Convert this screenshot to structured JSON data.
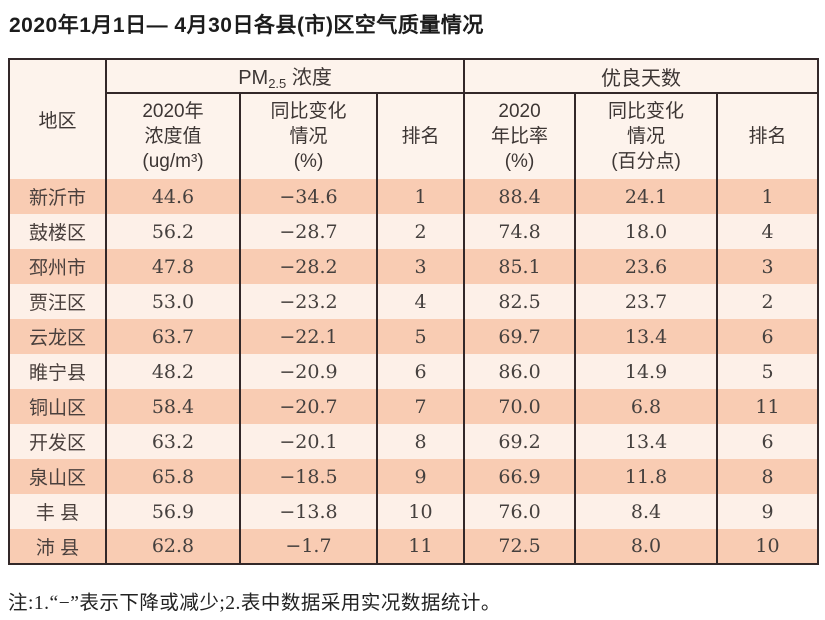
{
  "page": {
    "title": "2020年1月1日— 4月30日各县(市)区空气质量情况",
    "note": "注:1.“−”表示下降或减少;2.表中数据采用实况数据统计。"
  },
  "colors": {
    "row_odd_bg": "#f9ccb3",
    "row_even_bg": "#fdf0e8",
    "header_bg": "#fdf3ec",
    "border": "#332829",
    "page_bg": "#ffffff"
  },
  "table": {
    "header": {
      "region": "地区",
      "pm_group": {
        "prefix": "PM",
        "sub": "2.5",
        "tail": " 浓度"
      },
      "good_group": "优良天数",
      "sub_headers": [
        "2020年\n浓度值\n(ug/m³)",
        "同比变化\n情况\n(%)",
        "排名",
        "2020\n年比率\n(%)",
        "同比变化\n情况\n(百分点)",
        "排名"
      ]
    },
    "cell_names": [
      "cell-region",
      "cell-pm-value",
      "cell-pm-change",
      "cell-pm-rank",
      "cell-good-rate",
      "cell-good-change",
      "cell-good-rank"
    ],
    "rows": [
      [
        "新沂市",
        "44.6",
        "−34.6",
        "1",
        "88.4",
        "24.1",
        "1"
      ],
      [
        "鼓楼区",
        "56.2",
        "−28.7",
        "2",
        "74.8",
        "18.0",
        "4"
      ],
      [
        "邳州市",
        "47.8",
        "−28.2",
        "3",
        "85.1",
        "23.6",
        "3"
      ],
      [
        "贾汪区",
        "53.0",
        "−23.2",
        "4",
        "82.5",
        "23.7",
        "2"
      ],
      [
        "云龙区",
        "63.7",
        "−22.1",
        "5",
        "69.7",
        "13.4",
        "6"
      ],
      [
        "睢宁县",
        "48.2",
        "−20.9",
        "6",
        "86.0",
        "14.9",
        "5"
      ],
      [
        "铜山区",
        "58.4",
        "−20.7",
        "7",
        "70.0",
        "6.8",
        "11"
      ],
      [
        "开发区",
        "63.2",
        "−20.1",
        "8",
        "69.2",
        "13.4",
        "6"
      ],
      [
        "泉山区",
        "65.8",
        "−18.5",
        "9",
        "66.9",
        "11.8",
        "8"
      ],
      [
        "丰 县",
        "56.9",
        "−13.8",
        "10",
        "76.0",
        "8.4",
        "9"
      ],
      [
        "沛 县",
        "62.8",
        "−1.7",
        "11",
        "72.5",
        "8.0",
        "10"
      ]
    ]
  },
  "chart_data": {
    "type": "table",
    "title": "2020年1月1日— 4月30日各县(市)区空气质量情况",
    "column_groups": [
      "PM2.5浓度",
      "优良天数"
    ],
    "columns": [
      "地区",
      "2020年浓度值(ug/m³)",
      "同比变化情况(%)",
      "排名",
      "2020年比率(%)",
      "同比变化情况(百分点)",
      "排名"
    ],
    "rows": [
      [
        "新沂市",
        44.6,
        -34.6,
        1,
        88.4,
        24.1,
        1
      ],
      [
        "鼓楼区",
        56.2,
        -28.7,
        2,
        74.8,
        18.0,
        4
      ],
      [
        "邳州市",
        47.8,
        -28.2,
        3,
        85.1,
        23.6,
        3
      ],
      [
        "贾汪区",
        53.0,
        -23.2,
        4,
        82.5,
        23.7,
        2
      ],
      [
        "云龙区",
        63.7,
        -22.1,
        5,
        69.7,
        13.4,
        6
      ],
      [
        "睢宁县",
        48.2,
        -20.9,
        6,
        86.0,
        14.9,
        5
      ],
      [
        "铜山区",
        58.4,
        -20.7,
        7,
        70.0,
        6.8,
        11
      ],
      [
        "开发区",
        63.2,
        -20.1,
        8,
        69.2,
        13.4,
        6
      ],
      [
        "泉山区",
        65.8,
        -18.5,
        9,
        66.9,
        11.8,
        8
      ],
      [
        "丰 县",
        56.9,
        -13.8,
        10,
        76.0,
        8.4,
        9
      ],
      [
        "沛 县",
        62.8,
        -1.7,
        11,
        72.5,
        8.0,
        10
      ]
    ],
    "note": "注:1.“−”表示下降或减少;2.表中数据采用实况数据统计。"
  }
}
